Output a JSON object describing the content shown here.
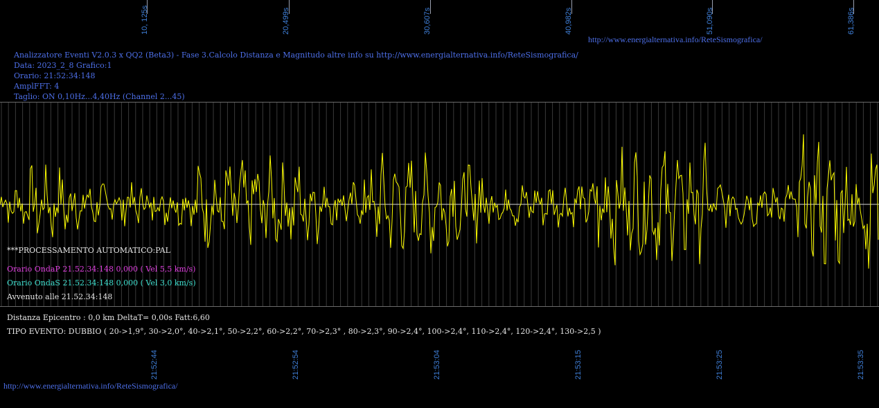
{
  "top_labels": [
    "10, 125s",
    "20,499s",
    "30,607s",
    "40,982s",
    "51,090s",
    "61,386s"
  ],
  "link_top": "http://www.energialternativa.info/ReteSismografica/",
  "header": {
    "line1": "Analizzatore Eventi V2.0.3 x QQ2 (Beta3) - Fase 3.Calcolo Distanza e Magnitudo altre info su http://www.energialternativa.info/ReteSismografica/",
    "line2": "Data: 2023_2_8 Grafico:1",
    "line3": "Orario: 21:52:34:148",
    "line4": "AmplFFT: 4",
    "line5": "Taglio: ON 0,10Hz...4,40Hz      (Channel 2...45)"
  },
  "processing": {
    "title": "***PROCESSAMENTO AUTOMATICO:PAL",
    "onda_p": "Orario OndaP 21.52.34:148  0,000 ( Vel 5,5 km/s)",
    "onda_s": "Orario OndaS 21.52.34:148  0,000 ( Vel 3,0 km/s)",
    "avvenuto": "Avvenuto alle 21.52.34:148"
  },
  "result": {
    "distanza": "Distanza Epicentro : 0,0 km DeltaT= 0,00s  Fatt:6,60",
    "tipo": "TIPO EVENTO: DUBBIO ( 20->1,9°, 30->2,0°, 40->2,1°, 50->2,2°, 60->2,2°, 70->2,3° , 80->2,3°, 90->2,4°, 100->2,4°, 110->2,4°, 120->2,4°, 130->2,5 )"
  },
  "bottom_labels": [
    "21:52:44",
    "21:52:54",
    "21:53:04",
    "21:53:15",
    "21:53:25",
    "21:53:35"
  ],
  "link_bottom": "http://www.energialternativa.info/ReteSismografica/",
  "colors": {
    "background": "#000000",
    "trace": "#ffff00",
    "header_text": "#4d6fe8",
    "axis_labels": "#3f7fd8",
    "onda_p": "#e040e0",
    "onda_s": "#40e0d0",
    "text": "#e6e6e6"
  }
}
